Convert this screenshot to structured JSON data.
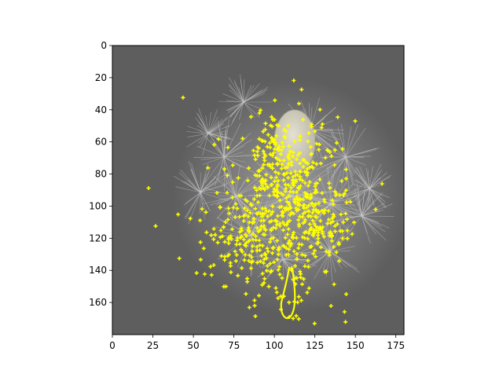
{
  "colors": {
    "figure_background": "#ffffff",
    "image_background": "#5e5e5e",
    "overlay": "#ffff00",
    "seed_head": "#d9d6c4",
    "pappus_filaments": "#c8c8c8",
    "axis": "#000000"
  },
  "image": {
    "subject": "dandelion seed with white pappus filaments on grey background",
    "overlay": "yellow point-mask markers and contour outline",
    "extent": {
      "x": [
        0,
        180
      ],
      "y": [
        180,
        0
      ]
    }
  },
  "axes": {
    "x": {
      "ticks": [
        0,
        25,
        50,
        75,
        100,
        125,
        150,
        175
      ]
    },
    "y": {
      "ticks": [
        0,
        20,
        40,
        60,
        80,
        100,
        120,
        140,
        160
      ]
    }
  }
}
